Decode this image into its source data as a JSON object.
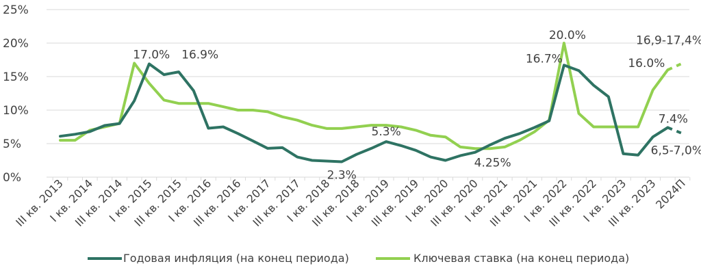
{
  "chart_data": {
    "type": "line",
    "categories": [
      "III кв. 2013",
      "",
      "I кв. 2014",
      "",
      "III кв. 2014",
      "",
      "I кв. 2015",
      "",
      "III кв. 2015",
      "",
      "I кв. 2016",
      "",
      "III кв. 2016",
      "",
      "I кв. 2017",
      "",
      "III кв. 2017",
      "",
      "I кв. 2018",
      "",
      "III кв. 2018",
      "",
      "I кв. 2019",
      "",
      "III кв. 2019",
      "",
      "I кв. 2020",
      "",
      "III кв. 2020",
      "",
      "I кв. 2021",
      "",
      "III кв. 2021",
      "",
      "I кв. 2022",
      "",
      "III кв. 2022",
      "",
      "I кв. 2023",
      "",
      "III кв. 2023",
      "",
      "2024П"
    ],
    "ylim": [
      0,
      25
    ],
    "yticks": [
      "0%",
      "5%",
      "10%",
      "15%",
      "20%",
      "25%"
    ],
    "grid": true,
    "legend_position": "bottom",
    "series": [
      {
        "name": "Годовая инфляция (на конец периода)",
        "color": "#2e7363",
        "values": [
          6.1,
          6.4,
          6.8,
          7.7,
          8.0,
          11.4,
          16.9,
          15.3,
          15.7,
          12.9,
          7.3,
          7.5,
          6.5,
          5.4,
          4.3,
          4.4,
          3.0,
          2.5,
          2.4,
          2.3,
          3.4,
          4.3,
          5.3,
          4.7,
          4.0,
          3.0,
          2.5,
          3.2,
          3.7,
          4.8,
          5.8,
          6.5,
          7.4,
          8.4,
          16.7,
          15.9,
          13.7,
          12.0,
          3.5,
          3.3,
          6.0,
          7.4,
          null
        ],
        "forecast": {
          "from_index": 41,
          "values": [
            7.4,
            6.5
          ]
        }
      },
      {
        "name": "Ключевая ставка (на конец периода)",
        "color": "#92d050",
        "values": [
          5.5,
          5.5,
          7.0,
          7.5,
          8.0,
          17.0,
          14.0,
          11.5,
          11.0,
          11.0,
          11.0,
          10.5,
          10.0,
          10.0,
          9.75,
          9.0,
          8.5,
          7.75,
          7.25,
          7.25,
          7.5,
          7.75,
          7.75,
          7.5,
          7.0,
          6.25,
          6.0,
          4.5,
          4.25,
          4.25,
          4.5,
          5.5,
          6.75,
          8.5,
          20.0,
          9.5,
          7.5,
          7.5,
          7.5,
          7.5,
          13.0,
          16.0,
          null
        ],
        "forecast": {
          "from_index": 41,
          "values": [
            16.0,
            17.0
          ]
        }
      }
    ],
    "annotations": [
      "17.0%",
      "16.9%",
      "2.3%",
      "5.3%",
      "4.25%",
      "20.0%",
      "16.7%",
      "16,9-17,4%",
      "16.0%",
      "7.4%",
      "6,5-7,0%"
    ]
  }
}
